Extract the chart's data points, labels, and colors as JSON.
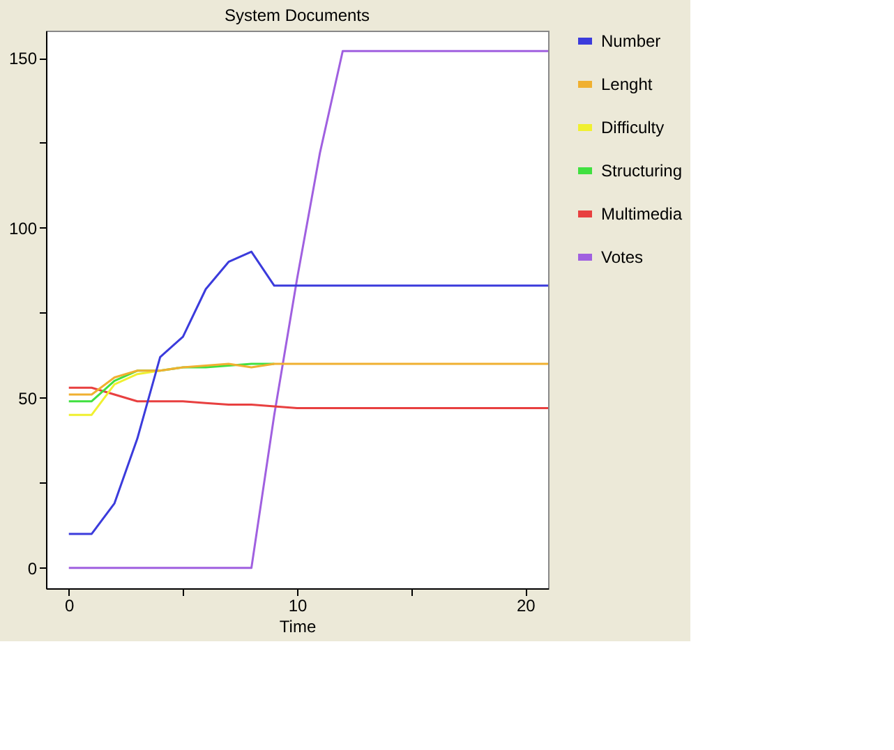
{
  "chart_data": {
    "type": "line",
    "title": "System Documents",
    "xlabel": "Time",
    "x": [
      0,
      1,
      2,
      3,
      4,
      5,
      6,
      7,
      8,
      9,
      10,
      11,
      12,
      13,
      14,
      15,
      16,
      17,
      18,
      19,
      20,
      21
    ],
    "xlim": [
      -1,
      21
    ],
    "ylim": [
      -6,
      158
    ],
    "xticks": [
      0,
      {
        "value": 5,
        "label": null
      },
      10,
      {
        "value": 15,
        "label": null
      },
      20
    ],
    "yticks": [
      0,
      {
        "value": 25,
        "label": null
      },
      50,
      {
        "value": 75,
        "label": null
      },
      100,
      {
        "value": 125,
        "label": null
      },
      150
    ],
    "grid": false,
    "legend": "right",
    "marker": "none",
    "line_style": "solid",
    "series": [
      {
        "name": "Number",
        "color": "#3b3bdc",
        "values": [
          10,
          10,
          19,
          38,
          62,
          68,
          82,
          90,
          93,
          83,
          83,
          83,
          83,
          83,
          83,
          83,
          83,
          83,
          83,
          83,
          83,
          83
        ]
      },
      {
        "name": "Lenght",
        "color": "#f0b030",
        "values": [
          51,
          51,
          56,
          58,
          58,
          59,
          59.5,
          60,
          59,
          60,
          60,
          60,
          60,
          60,
          60,
          60,
          60,
          60,
          60,
          60,
          60,
          60
        ]
      },
      {
        "name": "Difficulty",
        "color": "#f0f030",
        "values": [
          45,
          45,
          54,
          57,
          58,
          null,
          null,
          null,
          null,
          null,
          null,
          null,
          null,
          null,
          null,
          null,
          null,
          null,
          null,
          null,
          null,
          null
        ]
      },
      {
        "name": "Structuring",
        "color": "#40e040",
        "values": [
          49,
          49,
          55,
          58,
          58,
          59,
          59,
          59.5,
          60,
          60,
          null,
          null,
          null,
          null,
          null,
          null,
          null,
          null,
          null,
          null,
          null,
          null
        ]
      },
      {
        "name": "Multimedia",
        "color": "#e84040",
        "values": [
          53,
          53,
          51,
          49,
          49,
          49,
          48.5,
          48,
          48,
          47.5,
          47,
          47,
          47,
          47,
          47,
          47,
          47,
          47,
          47,
          47,
          47,
          47
        ]
      },
      {
        "name": "Votes",
        "color": "#a060e0",
        "values": [
          0,
          0,
          0,
          0,
          0,
          0,
          0,
          0,
          0,
          45,
          85,
          122,
          152,
          152,
          152,
          152,
          152,
          152,
          152,
          152,
          152,
          152
        ]
      }
    ]
  }
}
